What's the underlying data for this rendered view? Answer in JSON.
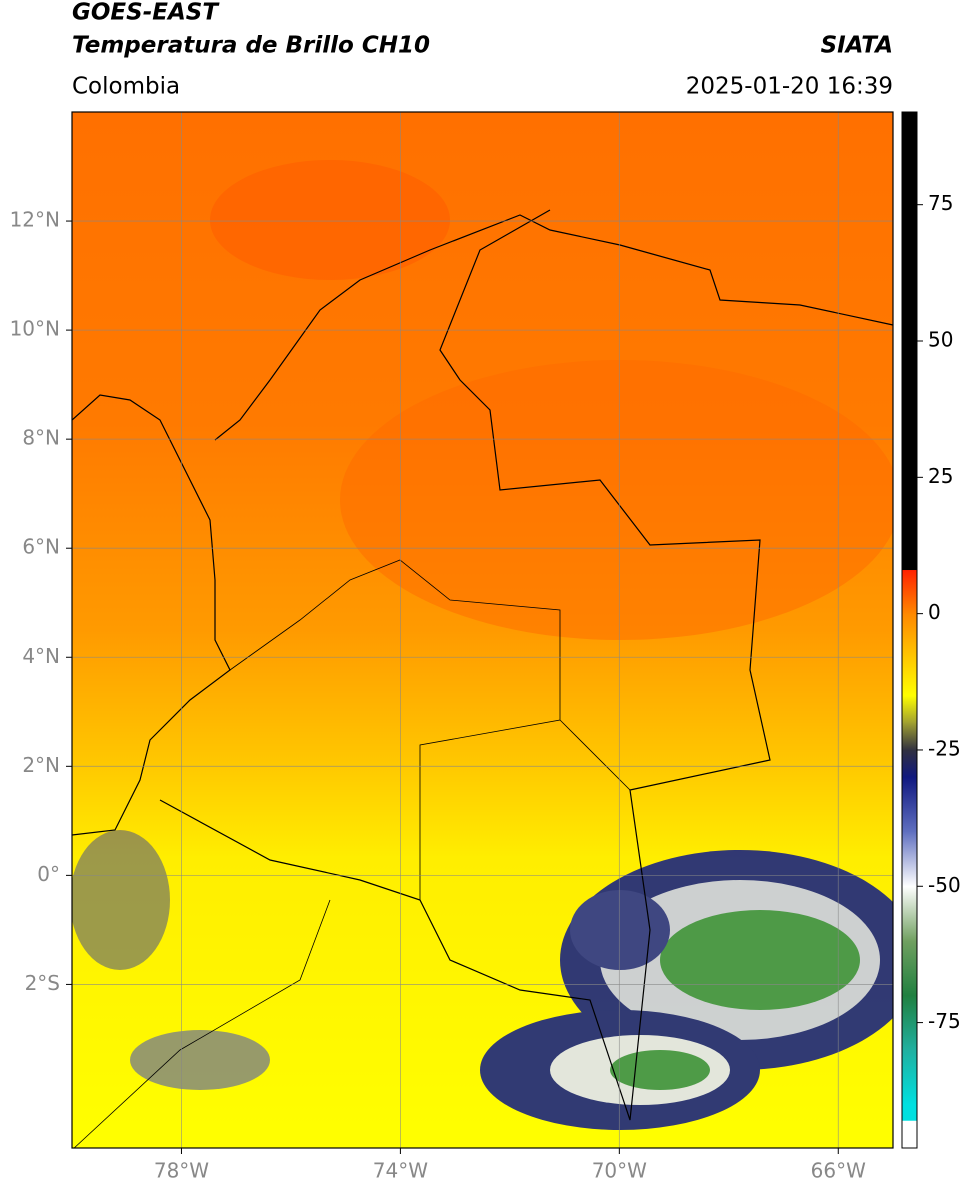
{
  "header": {
    "title_line1": "GOES-EAST",
    "title_line2": "Temperatura de Brillo CH10",
    "source": "SIATA",
    "region": "Colombia",
    "datetime": "2025-01-20 16:39"
  },
  "map": {
    "xlim": [
      -80,
      -65
    ],
    "ylim": [
      -5,
      14
    ],
    "xticks": [
      {
        "value": -78,
        "label": "78°W"
      },
      {
        "value": -74,
        "label": "74°W"
      },
      {
        "value": -70,
        "label": "70°W"
      },
      {
        "value": -66,
        "label": "66°W"
      }
    ],
    "yticks": [
      {
        "value": 12,
        "label": "12°N"
      },
      {
        "value": 10,
        "label": "10°N"
      },
      {
        "value": 8,
        "label": "8°N"
      },
      {
        "value": 6,
        "label": "6°N"
      },
      {
        "value": 4,
        "label": "4°N"
      },
      {
        "value": 2,
        "label": "2°N"
      },
      {
        "value": 0,
        "label": "0°"
      },
      {
        "value": -2,
        "label": "2°S"
      }
    ],
    "grid": true
  },
  "colorbar": {
    "ticks": [
      75,
      50,
      25,
      0,
      -25,
      -50,
      -75
    ],
    "stops": [
      {
        "value": 92,
        "color": "#000000"
      },
      {
        "value": 8,
        "color": "#000000"
      },
      {
        "value": 8,
        "color": "#ff2200"
      },
      {
        "value": 0,
        "color": "#ff8800"
      },
      {
        "value": -15,
        "color": "#ffff00"
      },
      {
        "value": -20,
        "color": "#a0a030"
      },
      {
        "value": -25,
        "color": "#303040"
      },
      {
        "value": -30,
        "color": "#101880"
      },
      {
        "value": -40,
        "color": "#6070c0"
      },
      {
        "value": -50,
        "color": "#ffffff"
      },
      {
        "value": -60,
        "color": "#70a060"
      },
      {
        "value": -70,
        "color": "#208040"
      },
      {
        "value": -80,
        "color": "#20b0a0"
      },
      {
        "value": -90,
        "color": "#00e0e0"
      },
      {
        "value": -93,
        "color": "#00e0e0"
      },
      {
        "value": -93,
        "color": "#ffffff"
      },
      {
        "value": -98,
        "color": "#ffffff"
      }
    ]
  }
}
